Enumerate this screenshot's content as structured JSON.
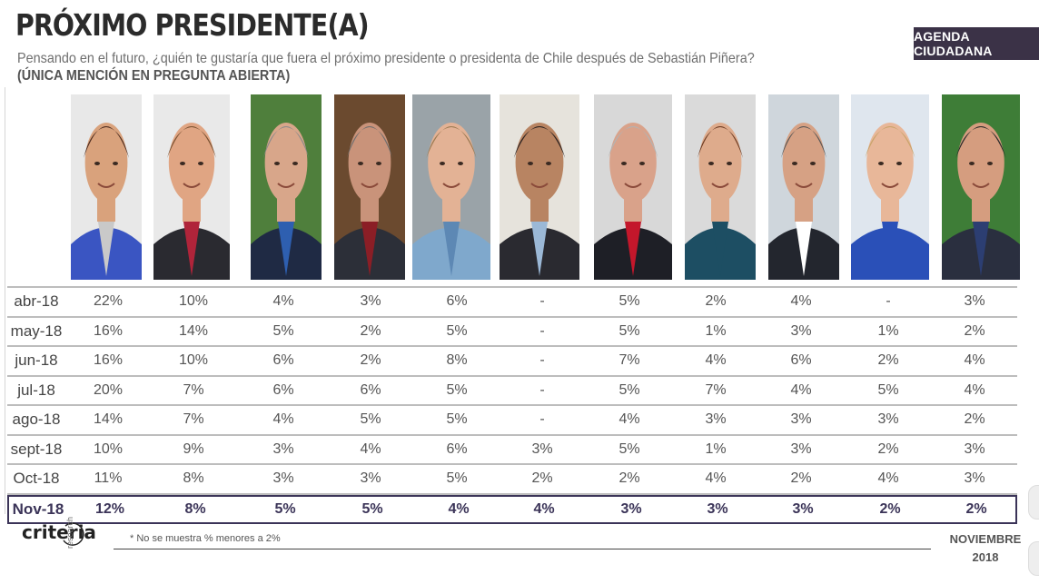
{
  "header": {
    "title": "PRÓXIMO PRESIDENTE(A)",
    "subtitle": "Pensando en el futuro, ¿quién te gustaría que fuera el próximo presidente o presidenta de Chile después de Sebastián Piñera?",
    "note": "(ÚNICA MENCIÓN EN PREGUNTA ABIERTA)",
    "badge": "AGENDA CIUDADANA"
  },
  "footer": {
    "footnote": "* No se muestra % menores a 2%",
    "date_line1": "NOVIEMBRE",
    "date_line2": "2018",
    "logo_text": "criteria",
    "logo_sub": "research"
  },
  "chart_data": {
    "type": "table",
    "columns": [
      "",
      "",
      "",
      "",
      "",
      "",
      "",
      "",
      "",
      "",
      ""
    ],
    "rows": [
      {
        "label": "abr-18",
        "values": [
          "22%",
          "10%",
          "4%",
          "3%",
          "6%",
          "-",
          "5%",
          "2%",
          "4%",
          "-",
          "3%"
        ]
      },
      {
        "label": "may-18",
        "values": [
          "16%",
          "14%",
          "5%",
          "2%",
          "5%",
          "-",
          "5%",
          "1%",
          "3%",
          "1%",
          "2%"
        ]
      },
      {
        "label": "jun-18",
        "values": [
          "16%",
          "10%",
          "6%",
          "2%",
          "8%",
          "-",
          "7%",
          "4%",
          "6%",
          "2%",
          "4%"
        ]
      },
      {
        "label": "jul-18",
        "values": [
          "20%",
          "7%",
          "6%",
          "6%",
          "5%",
          "-",
          "5%",
          "7%",
          "4%",
          "5%",
          "4%"
        ]
      },
      {
        "label": "ago-18",
        "values": [
          "14%",
          "7%",
          "4%",
          "5%",
          "5%",
          "-",
          "4%",
          "3%",
          "3%",
          "3%",
          "2%"
        ]
      },
      {
        "label": "sept-18",
        "values": [
          "10%",
          "9%",
          "3%",
          "4%",
          "6%",
          "3%",
          "5%",
          "1%",
          "3%",
          "2%",
          "3%"
        ]
      },
      {
        "label": "Oct-18",
        "values": [
          "11%",
          "8%",
          "3%",
          "3%",
          "5%",
          "2%",
          "2%",
          "4%",
          "2%",
          "4%",
          "3%"
        ]
      },
      {
        "label": "Nov-18",
        "values": [
          "12%",
          "8%",
          "5%",
          "5%",
          "4%",
          "4%",
          "3%",
          "3%",
          "3%",
          "2%",
          "2%"
        ],
        "highlight": true
      }
    ]
  },
  "photos": [
    {
      "bg": "#e8e8e8",
      "skin": "#d9a27c",
      "hair": "#4a2a1e",
      "top": "#3a55c2",
      "accent": "#c9c9c9"
    },
    {
      "bg": "#e9e9e9",
      "skin": "#e0a583",
      "hair": "#7a5232",
      "top": "#2a2a30",
      "accent": "#b0243a"
    },
    {
      "bg": "#4f7f3c",
      "skin": "#d8a68a",
      "hair": "#8a8a8a",
      "top": "#1f2a44",
      "accent": "#2e5fb0"
    },
    {
      "bg": "#6b4a2f",
      "skin": "#c9937a",
      "hair": "#6e6e6e",
      "top": "#2c2f38",
      "accent": "#8b1e26"
    },
    {
      "bg": "#9aa3a8",
      "skin": "#e3b295",
      "hair": "#9b7a52",
      "top": "#7fa8cc",
      "accent": "#5d88b4"
    },
    {
      "bg": "#e6e3dc",
      "skin": "#b88462",
      "hair": "#2b2220",
      "top": "#2a2a30",
      "accent": "#9bb8d6"
    },
    {
      "bg": "#d8d8d8",
      "skin": "#d9a28a",
      "hair": "#b3b3b3",
      "top": "#1e1f26",
      "accent": "#c4172b"
    },
    {
      "bg": "#dadada",
      "skin": "#deab8c",
      "hair": "#6b3a22",
      "top": "#1d4e63",
      "accent": "#1d4e63"
    },
    {
      "bg": "#cfd6dc",
      "skin": "#d6a184",
      "hair": "#555555",
      "top": "#23262e",
      "accent": "#ffffff"
    },
    {
      "bg": "#dfe6ee",
      "skin": "#e8b799",
      "hair": "#c9a46a",
      "top": "#2a50b8",
      "accent": "#2a50b8"
    },
    {
      "bg": "#3e7d37",
      "skin": "#d59d7f",
      "hair": "#2a2a2a",
      "top": "#2a2f3f",
      "accent": "#2c3e72"
    }
  ]
}
